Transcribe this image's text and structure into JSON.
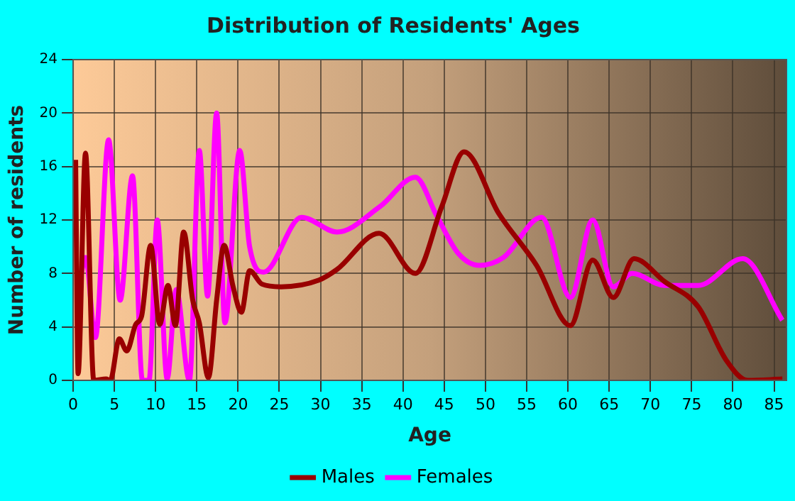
{
  "chart_data": {
    "type": "line",
    "title": "Distribution of Residents' Ages",
    "xlabel": "Age",
    "ylabel": "Number of residents",
    "xlim": [
      0,
      86.5
    ],
    "xticks": [
      0,
      5,
      10,
      15,
      20,
      25,
      30,
      35,
      40,
      45,
      50,
      55,
      60,
      65,
      70,
      75,
      80,
      85
    ],
    "ylim": [
      0,
      24
    ],
    "yticks": [
      0,
      4,
      8,
      12,
      16,
      20,
      24
    ],
    "grid": true,
    "legend": "bottom",
    "marker": "none",
    "line_style": "solid",
    "series": [
      {
        "name": "Males",
        "color": "#990000",
        "x": [
          0.3,
          0.6,
          1.5,
          2.5,
          4,
          4.5,
          5.6,
          6.5,
          7.6,
          8.3,
          9.4,
          10.5,
          11.5,
          12.4,
          13.4,
          14.5,
          15.3,
          16.4,
          17.4,
          18.3,
          19.4,
          20.4,
          21.4,
          22.9,
          25.2,
          29.8,
          32,
          37.1,
          41.5,
          44.7,
          47.4,
          51.6,
          56.2,
          60.3,
          63,
          65.5,
          68,
          71.7,
          75.8,
          79.2,
          81.8,
          86
        ],
        "values": [
          16.5,
          0.5,
          17,
          0,
          0.1,
          0,
          3.1,
          2.2,
          4.2,
          4.8,
          10.1,
          4.2,
          7.1,
          4.1,
          11.1,
          6,
          4.3,
          0.2,
          6,
          10.1,
          7,
          5.1,
          8.2,
          7.2,
          7,
          7.5,
          8.3,
          11,
          8,
          13,
          17.1,
          12.5,
          8.6,
          4.1,
          9,
          6.2,
          9.1,
          7.4,
          5.5,
          1.5,
          0,
          0.1
        ]
      },
      {
        "name": "Females",
        "color": "#ff00ff",
        "x": [
          0.9,
          1.5,
          2.7,
          4.3,
          5.7,
          7.2,
          8.4,
          9.2,
          10.2,
          11.4,
          12.5,
          14.1,
          15.3,
          16.3,
          17.4,
          18.4,
          20.2,
          21.4,
          23.1,
          27.7,
          32,
          37.2,
          41.5,
          44.1,
          46.7,
          49.3,
          52.2,
          56.8,
          60.3,
          63,
          65.5,
          67.8,
          71.7,
          75.8,
          81.2,
          86
        ],
        "values": [
          7.7,
          9.2,
          3.2,
          18,
          6,
          15.3,
          0,
          0,
          12,
          0.1,
          6.8,
          0,
          17.2,
          6.3,
          20,
          4.3,
          17.2,
          10,
          8.1,
          12.2,
          11.1,
          13,
          15.2,
          12.3,
          9.5,
          8.6,
          9.2,
          12.2,
          6.2,
          12,
          7,
          8,
          7.1,
          7.1,
          9.1,
          4.5
        ]
      }
    ]
  }
}
